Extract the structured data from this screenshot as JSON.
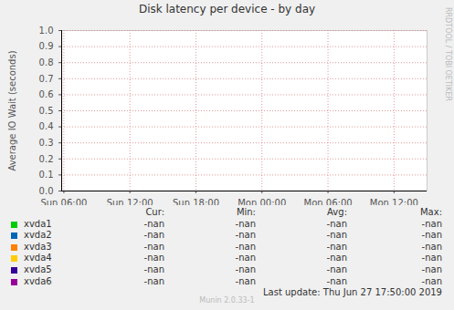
{
  "chart_data": {
    "type": "line",
    "title": "Disk latency per device - by day",
    "y_label": "Average IO Wait (seconds)",
    "x": [],
    "series": [
      {
        "name": "xvda1",
        "color": "#00cc00",
        "values": [],
        "cur": "-nan",
        "min": "-nan",
        "avg": "-nan",
        "max": "-nan"
      },
      {
        "name": "xvda2",
        "color": "#0066b3",
        "values": [],
        "cur": "-nan",
        "min": "-nan",
        "avg": "-nan",
        "max": "-nan"
      },
      {
        "name": "xvda3",
        "color": "#ff8000",
        "values": [],
        "cur": "-nan",
        "min": "-nan",
        "avg": "-nan",
        "max": "-nan"
      },
      {
        "name": "xvda4",
        "color": "#ffcc00",
        "values": [],
        "cur": "-nan",
        "min": "-nan",
        "avg": "-nan",
        "max": "-nan"
      },
      {
        "name": "xvda5",
        "color": "#330099",
        "values": [],
        "cur": "-nan",
        "min": "-nan",
        "avg": "-nan",
        "max": "-nan"
      },
      {
        "name": "xvda6",
        "color": "#990099",
        "values": [],
        "cur": "-nan",
        "min": "-nan",
        "avg": "-nan",
        "max": "-nan"
      }
    ],
    "stat_headers": [
      "Cur:",
      "Min:",
      "Avg:",
      "Max:"
    ],
    "xlim": [
      5.8,
      39
    ],
    "xticks": [
      {
        "value": 6,
        "label": "Sun 06:00"
      },
      {
        "value": 12,
        "label": "Sun 12:00"
      },
      {
        "value": 18,
        "label": "Sun 18:00"
      },
      {
        "value": 24,
        "label": "Mon 00:00"
      },
      {
        "value": 30,
        "label": "Mon 06:00"
      },
      {
        "value": 36,
        "label": "Mon 12:00"
      }
    ],
    "ylim": [
      0,
      1
    ],
    "yticks": [
      {
        "value": 0,
        "label": "0.0"
      },
      {
        "value": 0.1,
        "label": "0.1"
      },
      {
        "value": 0.2,
        "label": "0.2"
      },
      {
        "value": 0.3,
        "label": "0.3"
      },
      {
        "value": 0.4,
        "label": "0.4"
      },
      {
        "value": 0.5,
        "label": "0.5"
      },
      {
        "value": 0.6,
        "label": "0.6"
      },
      {
        "value": 0.7,
        "label": "0.7"
      },
      {
        "value": 0.8,
        "label": "0.8"
      },
      {
        "value": 0.9,
        "label": "0.9"
      },
      {
        "value": 1,
        "label": "1.0"
      }
    ],
    "grid": true,
    "last_update": "Last update:  Thu Jun 27 17:50:00 2019",
    "footer": "Munin 2.0.33-1",
    "watermark": "RRDTOOL / TOBI OETIKER"
  }
}
